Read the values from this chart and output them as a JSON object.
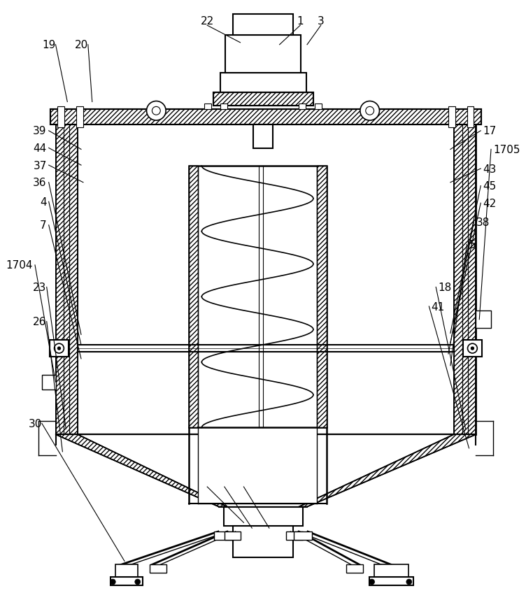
{
  "bg_color": "#ffffff",
  "line_color": "#000000",
  "fig_width": 7.52,
  "fig_height": 8.79,
  "dpi": 100
}
